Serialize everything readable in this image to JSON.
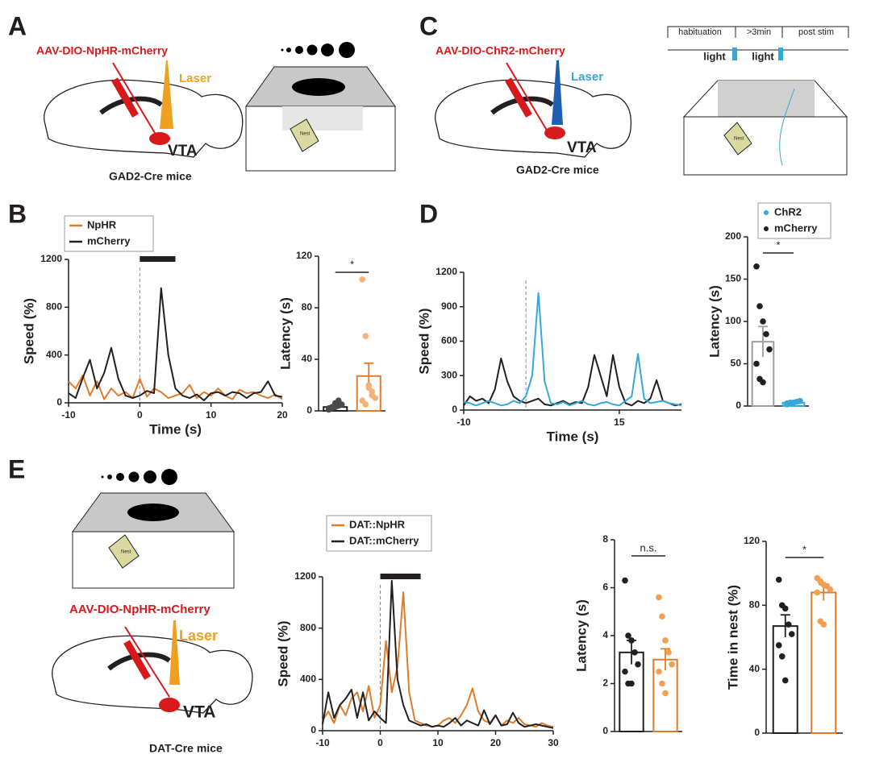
{
  "panels": {
    "A": {
      "label": "A",
      "virus": "AAV-DIO-NpHR-mCherry",
      "laser": "Laser",
      "region": "VTA",
      "mice": "GAD2-Cre mice",
      "nest": "Nest"
    },
    "B": {
      "label": "B"
    },
    "C": {
      "label": "C",
      "virus": "AAV-DIO-ChR2-mCherry",
      "laser": "Laser",
      "region": "VTA",
      "mice": "GAD2-Cre mice",
      "nest": "Nest",
      "timeline": [
        "habituation",
        ">3min",
        "post stim"
      ],
      "light": [
        "light",
        "light"
      ]
    },
    "D": {
      "label": "D"
    },
    "E": {
      "label": "E",
      "virus": "AAV-DIO-NpHR-mCherry",
      "laser": "Laser",
      "region": "VTA",
      "mice": "DAT-Cre mice",
      "nest": "Nest"
    }
  },
  "chart_data": [
    {
      "type": "line",
      "xlabel": "Time (s)",
      "ylabel": "Speed (%)",
      "xlim": [
        -10,
        20
      ],
      "xticks": [
        -10,
        0,
        10,
        20
      ],
      "ylim": [
        0,
        1200
      ],
      "yticks": [
        0,
        400,
        800,
        1200
      ],
      "legend": true,
      "stimulus": [
        0,
        5
      ],
      "marker_x": 0,
      "x": [
        -10,
        -9,
        -8,
        -7,
        -6,
        -5,
        -4,
        -3,
        -2,
        -1,
        0,
        1,
        2,
        3,
        4,
        5,
        6,
        7,
        8,
        9,
        10,
        11,
        12,
        13,
        14,
        15,
        16,
        17,
        18,
        19,
        20
      ],
      "series": [
        {
          "name": "NpHR",
          "color": "#e07b2b",
          "values": [
            180,
            120,
            230,
            60,
            180,
            30,
            120,
            60,
            90,
            40,
            200,
            50,
            120,
            90,
            40,
            60,
            80,
            150,
            40,
            90,
            60,
            120,
            60,
            30,
            110,
            80,
            90,
            60,
            40,
            70,
            30
          ]
        },
        {
          "name": "mCherry",
          "color": "#231f20",
          "values": [
            80,
            40,
            210,
            360,
            120,
            250,
            460,
            200,
            60,
            40,
            60,
            100,
            80,
            960,
            400,
            120,
            60,
            40,
            70,
            20,
            80,
            90,
            60,
            90,
            80,
            40,
            80,
            90,
            180,
            60,
            50
          ]
        }
      ]
    },
    {
      "type": "bar",
      "ylabel": "Latency (s)",
      "ylim": [
        0,
        120
      ],
      "yticks": [
        0,
        40,
        80,
        120
      ],
      "annotation": "*",
      "series": [
        {
          "color": "#231f20",
          "point_color": "#4a4a4a",
          "value": 3,
          "error": 1,
          "points": [
            1,
            2,
            3,
            4,
            5,
            2,
            3,
            6,
            8
          ]
        },
        {
          "color": "#e07b2b",
          "point_color": "#f2b27a",
          "value": 27,
          "error": 10,
          "points": [
            102,
            58,
            18,
            15,
            10,
            8,
            5,
            20,
            12
          ]
        }
      ]
    },
    {
      "type": "line",
      "xlabel": "Time (s)",
      "ylabel": "Speed (%)",
      "xlim": [
        -10,
        25
      ],
      "xticks": [
        -10,
        15
      ],
      "ylim": [
        0,
        1200
      ],
      "yticks": [
        0,
        300,
        600,
        900,
        1200
      ],
      "legend": false,
      "marker_x": 0,
      "x": [
        -10,
        -9,
        -8,
        -7,
        -6,
        -5,
        -4,
        -3,
        -2,
        -1,
        0,
        1,
        2,
        3,
        4,
        5,
        6,
        7,
        8,
        9,
        10,
        11,
        12,
        13,
        14,
        15,
        16,
        17,
        18,
        19,
        20,
        21,
        22,
        23,
        24,
        25
      ],
      "series": [
        {
          "color": "#231f20",
          "values": [
            40,
            120,
            80,
            100,
            60,
            180,
            450,
            250,
            120,
            80,
            60,
            80,
            100,
            50,
            40,
            60,
            80,
            50,
            70,
            60,
            200,
            480,
            300,
            120,
            480,
            200,
            60,
            40,
            80,
            60,
            100,
            260,
            80,
            60,
            40,
            50
          ]
        },
        {
          "color": "#35a8d9",
          "values": [
            70,
            60,
            40,
            60,
            80,
            60,
            40,
            50,
            80,
            60,
            120,
            300,
            1020,
            250,
            60,
            50,
            70,
            40,
            60,
            80,
            50,
            40,
            60,
            70,
            50,
            40,
            80,
            120,
            490,
            100,
            60,
            70,
            80,
            60,
            50,
            40
          ]
        }
      ]
    },
    {
      "type": "bar",
      "ylabel": "Latency (s)",
      "ylim": [
        0,
        200
      ],
      "yticks": [
        0,
        50,
        100,
        150,
        200
      ],
      "annotation": "*",
      "legend": [
        {
          "name": "ChR2",
          "color": "#35a8d9"
        },
        {
          "name": "mCherry",
          "color": "#231f20"
        }
      ],
      "series": [
        {
          "color": "#9d9d9d",
          "point_color": "#231f20",
          "value": 76,
          "error": 18,
          "points": [
            165,
            118,
            100,
            85,
            67,
            50,
            32,
            28
          ]
        },
        {
          "color": "#35a8d9",
          "point_color": "#35a8d9",
          "value": 4,
          "error": 1,
          "points": [
            2,
            3,
            4,
            5,
            6,
            3,
            4
          ]
        }
      ]
    },
    {
      "type": "line",
      "ylabel": "Speed (%)",
      "xlim": [
        -10,
        30
      ],
      "xticks": [
        -10,
        0,
        10,
        20,
        30
      ],
      "ylim": [
        0,
        1200
      ],
      "yticks": [
        0,
        400,
        800,
        1200
      ],
      "legend": true,
      "stimulus": [
        0,
        7
      ],
      "marker_x": 0,
      "x": [
        -10,
        -9,
        -8,
        -7,
        -6,
        -5,
        -4,
        -3,
        -2,
        -1,
        0,
        1,
        2,
        3,
        4,
        5,
        6,
        7,
        8,
        9,
        10,
        11,
        12,
        13,
        14,
        15,
        16,
        17,
        18,
        19,
        20,
        21,
        22,
        23,
        24,
        25,
        26,
        27,
        28,
        29,
        30
      ],
      "series": [
        {
          "name": "DAT::NpHR",
          "color": "#e07b2b",
          "values": [
            80,
            150,
            60,
            200,
            120,
            250,
            300,
            150,
            350,
            100,
            200,
            700,
            300,
            500,
            1080,
            300,
            80,
            60,
            40,
            30,
            40,
            80,
            100,
            60,
            120,
            200,
            330,
            150,
            80,
            60,
            120,
            40,
            80,
            60,
            100,
            50,
            40,
            30,
            60,
            40,
            30
          ]
        },
        {
          "name": "DAT::mCherry",
          "color": "#231f20",
          "values": [
            50,
            300,
            100,
            200,
            250,
            320,
            100,
            300,
            80,
            150,
            100,
            60,
            1170,
            400,
            200,
            80,
            60,
            40,
            50,
            30,
            40,
            30,
            60,
            100,
            40,
            80,
            60,
            40,
            160,
            50,
            120,
            40,
            50,
            140,
            60,
            30,
            40,
            50,
            40,
            30,
            20
          ]
        }
      ]
    },
    {
      "type": "bar",
      "ylabel": "Latency (s)",
      "ylim": [
        0,
        8
      ],
      "yticks": [
        0,
        2,
        4,
        6,
        8
      ],
      "annotation": "n.s.",
      "series": [
        {
          "color": "#231f20",
          "point_color": "#231f20",
          "value": 3.3,
          "error": 0.5,
          "points": [
            6.3,
            4,
            3.8,
            3.3,
            2.8,
            2.5,
            2,
            2
          ]
        },
        {
          "color": "#e07b2b",
          "point_color": "#f0a050",
          "value": 3.0,
          "error": 0.45,
          "points": [
            5.6,
            4.8,
            3.8,
            3.3,
            2.8,
            2.5,
            2,
            1.6
          ]
        }
      ]
    },
    {
      "type": "bar",
      "ylabel": "Time in nest (%)",
      "ylim": [
        0,
        120
      ],
      "yticks": [
        0,
        40,
        80,
        120
      ],
      "annotation": "*",
      "series": [
        {
          "color": "#231f20",
          "point_color": "#231f20",
          "value": 67,
          "error": 7,
          "points": [
            96,
            80,
            78,
            68,
            62,
            55,
            48,
            33
          ]
        },
        {
          "color": "#e07b2b",
          "point_color": "#f0a050",
          "value": 88,
          "error": 5,
          "points": [
            97,
            95,
            93,
            92,
            90,
            88,
            70,
            68
          ]
        }
      ]
    }
  ]
}
